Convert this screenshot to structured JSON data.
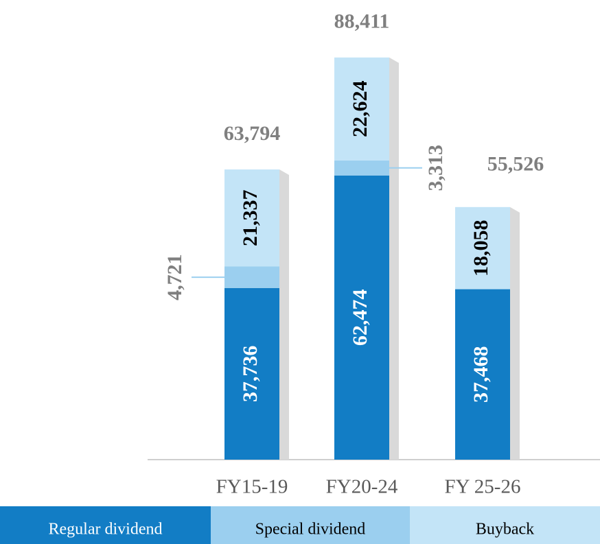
{
  "chart_data": {
    "type": "stacked_bar",
    "categories": [
      "FY15-19",
      "FY20-24",
      "FY 25-26"
    ],
    "series": [
      {
        "name": "Regular dividend",
        "color": "#127dc5",
        "values": [
          37736,
          62474,
          37468
        ],
        "value_labels": [
          "37,736",
          "62,474",
          "37,468"
        ]
      },
      {
        "name": "Special dividend",
        "color": "#9bcfef",
        "values": [
          4721,
          3313,
          null
        ],
        "value_labels": [
          "4,721",
          "3,313",
          null
        ]
      },
      {
        "name": "Buyback",
        "color": "#c3e4f7",
        "values": [
          21337,
          22624,
          18058
        ],
        "value_labels": [
          "21,337",
          "22,624",
          "18,058"
        ]
      }
    ],
    "totals": {
      "values": [
        63794,
        88411,
        55526
      ],
      "value_labels": [
        "63,794",
        "88,411",
        "55,526"
      ]
    },
    "ylim": [
      0,
      92000
    ]
  }
}
